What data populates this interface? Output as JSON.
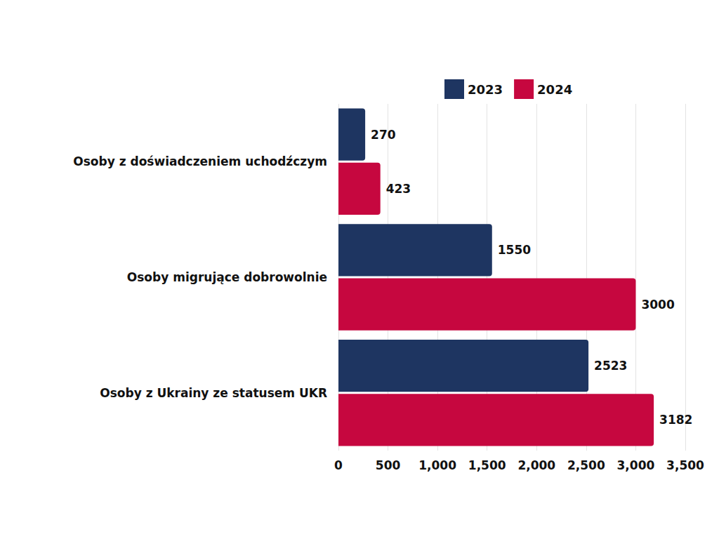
{
  "chart_data": {
    "type": "bar",
    "orientation": "horizontal",
    "categories": [
      "Osoby z doświadczeniem uchodźczym",
      "Osoby migrujące dobrowolnie",
      "Osoby z Ukrainy ze statusem UKR"
    ],
    "series": [
      {
        "name": "2023",
        "color": "#1e3561",
        "values": [
          270,
          1550,
          2523
        ]
      },
      {
        "name": "2024",
        "color": "#c6073f",
        "values": [
          423,
          3000,
          3182
        ]
      }
    ],
    "xlim": [
      0,
      3500
    ],
    "xticks": [
      0,
      500,
      1000,
      1500,
      2000,
      2500,
      3000,
      3500
    ],
    "grid": true,
    "legend": "top",
    "data_labels": true
  }
}
